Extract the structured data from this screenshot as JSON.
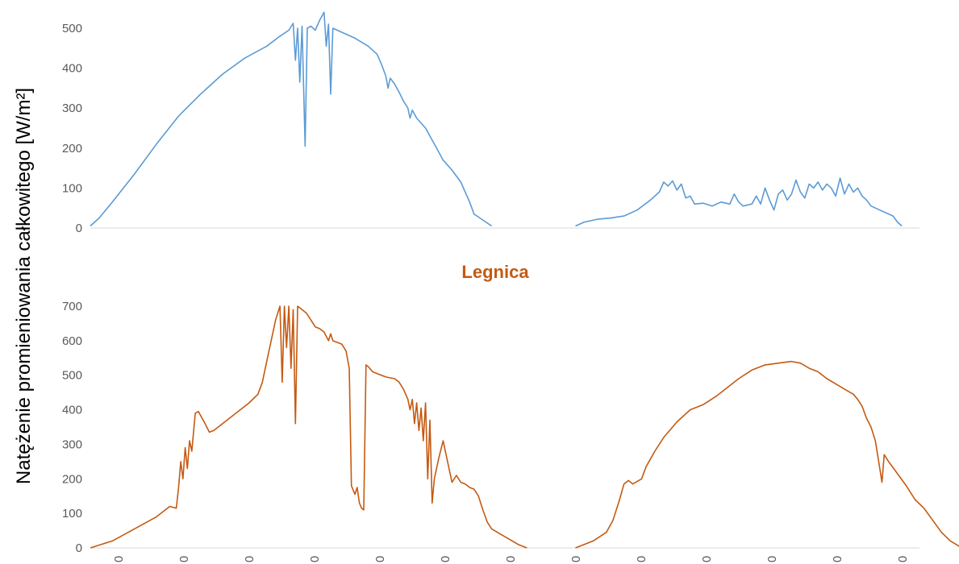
{
  "y_axis_label": "Natężenie promieniowania całkowitego [W/m²]",
  "colors": {
    "top": "#5b9bd5",
    "bottom": "#c55a11",
    "axis": "#d9d9d9",
    "tick": "#595959"
  },
  "chart_data": [
    {
      "type": "line",
      "title": "",
      "ylabel": "Natężenie promieniowania całkowitego [W/m²]",
      "ylim": [
        0,
        500
      ],
      "yticks": [
        "0",
        "100",
        "200",
        "300",
        "400",
        "500"
      ],
      "grid": false,
      "series": [
        {
          "color": "#5b9bd5",
          "segments": [
            [
              [
                0,
                5
              ],
              [
                2,
                25
              ],
              [
                5,
                65
              ],
              [
                10,
                135
              ],
              [
                15,
                210
              ],
              [
                20,
                280
              ],
              [
                25,
                335
              ],
              [
                30,
                385
              ],
              [
                35,
                425
              ],
              [
                40,
                455
              ],
              [
                43,
                480
              ],
              [
                45,
                495
              ],
              [
                46,
                512
              ],
              [
                46.5,
                420
              ],
              [
                47,
                500
              ],
              [
                47.5,
                365
              ],
              [
                48,
                505
              ],
              [
                48.7,
                205
              ],
              [
                49.2,
                500
              ],
              [
                50,
                505
              ],
              [
                51,
                495
              ],
              [
                52,
                520
              ],
              [
                53,
                540
              ],
              [
                53.5,
                455
              ],
              [
                54,
                510
              ],
              [
                54.5,
                335
              ],
              [
                55,
                500
              ],
              [
                57,
                490
              ],
              [
                60,
                475
              ],
              [
                63,
                455
              ],
              [
                65,
                435
              ],
              [
                66,
                410
              ],
              [
                67,
                380
              ],
              [
                67.5,
                350
              ],
              [
                68,
                375
              ],
              [
                69,
                360
              ],
              [
                70,
                340
              ],
              [
                71,
                318
              ],
              [
                72,
                300
              ],
              [
                72.5,
                275
              ],
              [
                73,
                295
              ],
              [
                74,
                275
              ],
              [
                76,
                250
              ],
              [
                78,
                210
              ],
              [
                80,
                170
              ],
              [
                82,
                145
              ],
              [
                84,
                115
              ],
              [
                86,
                65
              ],
              [
                87,
                35
              ],
              [
                89,
                20
              ],
              [
                91,
                5
              ]
            ],
            [
              [
                110,
                5
              ],
              [
                112,
                15
              ],
              [
                115,
                22
              ],
              [
                118,
                25
              ],
              [
                121,
                30
              ],
              [
                124,
                45
              ],
              [
                127,
                70
              ],
              [
                129,
                90
              ],
              [
                130,
                115
              ],
              [
                131,
                105
              ],
              [
                132,
                118
              ],
              [
                133,
                95
              ],
              [
                134,
                110
              ],
              [
                135,
                75
              ],
              [
                136,
                80
              ],
              [
                137,
                60
              ],
              [
                139,
                62
              ],
              [
                141,
                55
              ],
              [
                143,
                65
              ],
              [
                145,
                60
              ],
              [
                146,
                85
              ],
              [
                147,
                65
              ],
              [
                148,
                55
              ],
              [
                150,
                60
              ],
              [
                151,
                80
              ],
              [
                152,
                60
              ],
              [
                153,
                100
              ],
              [
                154,
                70
              ],
              [
                155,
                45
              ],
              [
                156,
                85
              ],
              [
                157,
                95
              ],
              [
                158,
                70
              ],
              [
                159,
                85
              ],
              [
                160,
                120
              ],
              [
                161,
                90
              ],
              [
                162,
                75
              ],
              [
                163,
                110
              ],
              [
                164,
                100
              ],
              [
                165,
                115
              ],
              [
                166,
                95
              ],
              [
                167,
                110
              ],
              [
                168,
                100
              ],
              [
                169,
                80
              ],
              [
                170,
                125
              ],
              [
                171,
                85
              ],
              [
                172,
                110
              ],
              [
                173,
                90
              ],
              [
                174,
                100
              ],
              [
                175,
                80
              ],
              [
                176,
                70
              ],
              [
                177,
                55
              ],
              [
                179,
                45
              ],
              [
                181,
                35
              ],
              [
                182,
                30
              ],
              [
                183,
                15
              ],
              [
                184,
                5
              ]
            ]
          ]
        }
      ]
    },
    {
      "type": "line",
      "title": "Legnica",
      "ylabel": "Natężenie promieniowania całkowitego [W/m²]",
      "ylim": [
        0,
        700
      ],
      "yticks": [
        "0",
        "100",
        "200",
        "300",
        "400",
        "500",
        "600",
        "700"
      ],
      "xticks": [
        "0",
        "0",
        "0",
        "0",
        "0",
        "0",
        "0",
        "0",
        "0",
        "0",
        "0",
        "0",
        "0"
      ],
      "grid": false,
      "series": [
        {
          "color": "#c55a11",
          "segments": [
            [
              [
                0,
                0
              ],
              [
                5,
                20
              ],
              [
                10,
                55
              ],
              [
                15,
                90
              ],
              [
                18,
                120
              ],
              [
                19.5,
                115
              ],
              [
                20,
                175
              ],
              [
                20.5,
                250
              ],
              [
                21,
                200
              ],
              [
                21.5,
                290
              ],
              [
                22,
                230
              ],
              [
                22.5,
                310
              ],
              [
                23,
                280
              ],
              [
                23.8,
                390
              ],
              [
                24.5,
                395
              ],
              [
                26,
                360
              ],
              [
                27,
                335
              ],
              [
                28,
                340
              ],
              [
                30,
                360
              ],
              [
                33,
                390
              ],
              [
                36,
                420
              ],
              [
                38,
                445
              ],
              [
                39,
                480
              ],
              [
                40,
                540
              ],
              [
                41,
                600
              ],
              [
                42,
                660
              ],
              [
                43,
                700
              ],
              [
                43.5,
                480
              ],
              [
                44,
                700
              ],
              [
                44.5,
                580
              ],
              [
                45,
                700
              ],
              [
                45.5,
                520
              ],
              [
                46,
                690
              ],
              [
                46.5,
                360
              ],
              [
                47,
                700
              ],
              [
                48,
                690
              ],
              [
                49,
                680
              ],
              [
                50,
                660
              ],
              [
                51,
                640
              ],
              [
                52,
                635
              ],
              [
                53,
                625
              ],
              [
                54,
                600
              ],
              [
                54.5,
                620
              ],
              [
                55,
                600
              ],
              [
                56,
                595
              ],
              [
                57,
                590
              ],
              [
                58,
                570
              ],
              [
                58.7,
                520
              ],
              [
                59.2,
                180
              ],
              [
                60,
                155
              ],
              [
                60.5,
                175
              ],
              [
                61,
                130
              ],
              [
                61.5,
                115
              ],
              [
                62,
                110
              ],
              [
                62.5,
                530
              ],
              [
                63,
                525
              ],
              [
                64,
                510
              ],
              [
                65,
                505
              ],
              [
                67,
                495
              ],
              [
                69,
                490
              ],
              [
                70,
                480
              ],
              [
                71,
                460
              ],
              [
                72,
                430
              ],
              [
                72.5,
                400
              ],
              [
                73,
                430
              ],
              [
                73.5,
                360
              ],
              [
                74,
                420
              ],
              [
                74.5,
                340
              ],
              [
                75,
                405
              ],
              [
                75.5,
                310
              ],
              [
                76,
                420
              ],
              [
                76.5,
                200
              ],
              [
                77,
                370
              ],
              [
                77.5,
                130
              ],
              [
                78,
                200
              ],
              [
                79,
                260
              ],
              [
                80,
                310
              ],
              [
                81,
                250
              ],
              [
                82,
                190
              ],
              [
                83,
                210
              ],
              [
                84,
                190
              ],
              [
                85,
                185
              ],
              [
                86,
                175
              ],
              [
                87,
                170
              ],
              [
                88,
                150
              ],
              [
                89,
                110
              ],
              [
                90,
                75
              ],
              [
                91,
                55
              ],
              [
                93,
                40
              ],
              [
                95,
                25
              ],
              [
                97,
                10
              ],
              [
                99,
                0
              ]
            ],
            [
              [
                110,
                0
              ],
              [
                114,
                20
              ],
              [
                117,
                45
              ],
              [
                118.5,
                80
              ],
              [
                120,
                140
              ],
              [
                121,
                185
              ],
              [
                122,
                195
              ],
              [
                123,
                185
              ],
              [
                125,
                200
              ],
              [
                126,
                235
              ],
              [
                128,
                280
              ],
              [
                130,
                320
              ],
              [
                133,
                365
              ],
              [
                136,
                400
              ],
              [
                139,
                415
              ],
              [
                142,
                440
              ],
              [
                144,
                460
              ],
              [
                147,
                490
              ],
              [
                150,
                515
              ],
              [
                153,
                530
              ],
              [
                156,
                535
              ],
              [
                159,
                540
              ],
              [
                161,
                535
              ],
              [
                163,
                520
              ],
              [
                165,
                510
              ],
              [
                167,
                490
              ],
              [
                169,
                475
              ],
              [
                171,
                460
              ],
              [
                173,
                445
              ],
              [
                174,
                430
              ],
              [
                175,
                410
              ],
              [
                176,
                375
              ],
              [
                177,
                350
              ],
              [
                178,
                310
              ],
              [
                179,
                230
              ],
              [
                179.5,
                190
              ],
              [
                180,
                270
              ],
              [
                181,
                250
              ],
              [
                183,
                215
              ],
              [
                185,
                180
              ],
              [
                187,
                140
              ],
              [
                189,
                115
              ],
              [
                191,
                80
              ],
              [
                193,
                45
              ],
              [
                195,
                20
              ],
              [
                197,
                5
              ],
              [
                198,
                0
              ]
            ]
          ]
        }
      ]
    }
  ]
}
